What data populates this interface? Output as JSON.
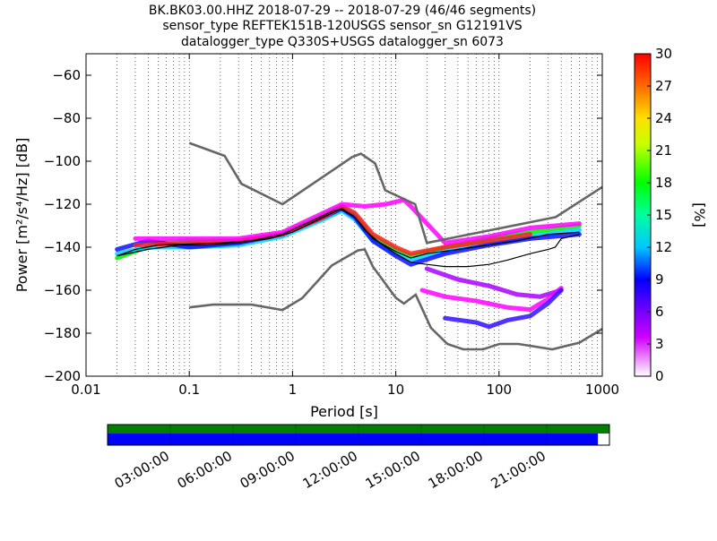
{
  "title_lines": [
    "BK.BK03.00.HHZ   2018-07-29 -- 2018-07-29  (46/46 segments)",
    "sensor_type REFTEK151B-120USGS sensor_sn G12191VS",
    "datalogger_type Q330S+USGS datalogger_sn 6073"
  ],
  "chart_data": {
    "type": "heatmap",
    "xlabel": "Period [s]",
    "ylabel": "Power [m²/s⁴/Hz] [dB]",
    "xscale": "log",
    "xlim": [
      0.01,
      1000
    ],
    "ylim": [
      -200,
      -50
    ],
    "x_ticks": [
      {
        "v": 0.01,
        "label": "0.01"
      },
      {
        "v": 0.1,
        "label": "0.1"
      },
      {
        "v": 1,
        "label": "1"
      },
      {
        "v": 10,
        "label": "10"
      },
      {
        "v": 100,
        "label": "100"
      },
      {
        "v": 1000,
        "label": "1000"
      }
    ],
    "y_ticks": [
      {
        "v": -60,
        "label": "−60"
      },
      {
        "v": -80,
        "label": "−80"
      },
      {
        "v": -100,
        "label": "−100"
      },
      {
        "v": -120,
        "label": "−120"
      },
      {
        "v": -140,
        "label": "−140"
      },
      {
        "v": -160,
        "label": "−160"
      },
      {
        "v": -180,
        "label": "−180"
      },
      {
        "v": -200,
        "label": "−200"
      }
    ],
    "grid": "dotted vertical lines at log-period steps",
    "colorbar": {
      "label": "[%]",
      "range": [
        0,
        30
      ],
      "ticks": [
        "0",
        "3",
        "6",
        "9",
        "12",
        "15",
        "18",
        "21",
        "24",
        "27",
        "30"
      ]
    },
    "noise_models": {
      "high": {
        "color": "#666666",
        "points": [
          [
            0.1,
            -91.5
          ],
          [
            0.22,
            -97.5
          ],
          [
            0.32,
            -110.5
          ],
          [
            0.8,
            -120
          ],
          [
            3.8,
            -98
          ],
          [
            4.6,
            -96.5
          ],
          [
            6.3,
            -101
          ],
          [
            7.9,
            -113.5
          ],
          [
            15.4,
            -120
          ],
          [
            20,
            -138
          ],
          [
            354,
            -126
          ],
          [
            1000,
            -112
          ]
        ]
      },
      "low": {
        "color": "#666666",
        "points": [
          [
            0.1,
            -168
          ],
          [
            0.17,
            -166.7
          ],
          [
            0.4,
            -166.7
          ],
          [
            0.8,
            -169.2
          ],
          [
            1.24,
            -163.7
          ],
          [
            2.4,
            -148.5
          ],
          [
            4.3,
            -141.5
          ],
          [
            5,
            -141
          ],
          [
            6,
            -149
          ],
          [
            10,
            -163.5
          ],
          [
            12,
            -166.2
          ],
          [
            15.6,
            -162.1
          ],
          [
            21.9,
            -177.5
          ],
          [
            31.6,
            -185
          ],
          [
            45,
            -187.5
          ],
          [
            70,
            -187.5
          ],
          [
            101,
            -185
          ],
          [
            154,
            -185
          ],
          [
            328,
            -187.5
          ],
          [
            600,
            -184.4
          ],
          [
            1000,
            -178
          ]
        ]
      }
    },
    "median": {
      "color": "#000000",
      "points": [
        [
          0.02,
          -144
        ],
        [
          0.03,
          -141
        ],
        [
          0.05,
          -139
        ],
        [
          0.1,
          -138.5
        ],
        [
          0.2,
          -138
        ],
        [
          0.4,
          -137
        ],
        [
          0.8,
          -134
        ],
        [
          1.5,
          -128
        ],
        [
          2.5,
          -123
        ],
        [
          3,
          -122.5
        ],
        [
          4,
          -126
        ],
        [
          5,
          -132
        ],
        [
          7,
          -138
        ],
        [
          10,
          -143
        ],
        [
          14,
          -147
        ],
        [
          20,
          -148
        ],
        [
          30,
          -149
        ],
        [
          50,
          -149
        ],
        [
          80,
          -148
        ],
        [
          120,
          -146
        ],
        [
          200,
          -143
        ],
        [
          300,
          -141
        ],
        [
          350,
          -140
        ],
        [
          400,
          -136
        ],
        [
          600,
          -134
        ]
      ]
    },
    "mode": {
      "color": "#000000",
      "points": [
        [
          0.02,
          -144
        ],
        [
          0.04,
          -141
        ],
        [
          0.08,
          -139
        ],
        [
          0.15,
          -139
        ],
        [
          0.3,
          -138
        ],
        [
          0.6,
          -136
        ],
        [
          1,
          -133
        ],
        [
          2,
          -126
        ],
        [
          3,
          -122
        ],
        [
          4,
          -126
        ],
        [
          6,
          -136
        ],
        [
          10,
          -142
        ],
        [
          14,
          -145
        ],
        [
          20,
          -143
        ],
        [
          40,
          -141
        ],
        [
          80,
          -139
        ],
        [
          150,
          -137
        ],
        [
          300,
          -134
        ],
        [
          600,
          -133
        ]
      ]
    },
    "density_bands": [
      {
        "color": "#00ee00",
        "points": [
          [
            0.02,
            -145
          ],
          [
            0.05,
            -138
          ],
          [
            0.1,
            -137
          ],
          [
            0.3,
            -137
          ],
          [
            0.8,
            -134
          ],
          [
            2,
            -125
          ],
          [
            3,
            -121
          ],
          [
            4,
            -125
          ],
          [
            6,
            -135
          ],
          [
            10,
            -141
          ],
          [
            14,
            -144
          ],
          [
            30,
            -140
          ],
          [
            80,
            -136
          ],
          [
            200,
            -133
          ],
          [
            600,
            -130
          ]
        ]
      },
      {
        "color": "#00d0ff",
        "points": [
          [
            0.02,
            -143
          ],
          [
            0.04,
            -140
          ],
          [
            0.1,
            -140
          ],
          [
            0.3,
            -139
          ],
          [
            0.8,
            -135
          ],
          [
            2,
            -127
          ],
          [
            3,
            -123
          ],
          [
            4,
            -127
          ],
          [
            6,
            -137
          ],
          [
            10,
            -143
          ],
          [
            14,
            -146
          ],
          [
            30,
            -142
          ],
          [
            80,
            -138
          ],
          [
            200,
            -135
          ],
          [
            600,
            -132
          ]
        ]
      },
      {
        "color": "#1010ff",
        "points": [
          [
            0.02,
            -141
          ],
          [
            0.04,
            -137
          ],
          [
            0.1,
            -140
          ],
          [
            0.3,
            -138
          ],
          [
            0.8,
            -134
          ],
          [
            2,
            -126
          ],
          [
            3,
            -122
          ],
          [
            4,
            -126
          ],
          [
            6,
            -137
          ],
          [
            10,
            -144
          ],
          [
            14,
            -148
          ],
          [
            30,
            -143
          ],
          [
            80,
            -139
          ],
          [
            200,
            -136
          ],
          [
            600,
            -134
          ]
        ]
      },
      {
        "color": "#ff2020",
        "points": [
          [
            0.03,
            -139
          ],
          [
            0.1,
            -138
          ],
          [
            0.3,
            -137
          ],
          [
            0.8,
            -134
          ],
          [
            2,
            -126
          ],
          [
            3,
            -121
          ],
          [
            4,
            -124
          ],
          [
            6,
            -134
          ],
          [
            10,
            -140
          ],
          [
            14,
            -143
          ],
          [
            30,
            -140
          ],
          [
            80,
            -137
          ],
          [
            200,
            -134
          ]
        ]
      },
      {
        "color": "#ff00ff",
        "points": [
          [
            0.03,
            -136
          ],
          [
            0.1,
            -136
          ],
          [
            0.3,
            -136
          ],
          [
            0.8,
            -133
          ],
          [
            2,
            -124
          ],
          [
            3,
            -120
          ],
          [
            5,
            -121
          ],
          [
            8,
            -120
          ],
          [
            12,
            -118
          ],
          [
            14,
            -121
          ],
          [
            30,
            -138
          ],
          [
            80,
            -135
          ],
          [
            200,
            -131
          ],
          [
            600,
            -129
          ]
        ]
      },
      {
        "color": "#aa00ff",
        "points": [
          [
            20,
            -150
          ],
          [
            40,
            -155
          ],
          [
            80,
            -158
          ],
          [
            150,
            -162
          ],
          [
            250,
            -163
          ],
          [
            400,
            -160
          ]
        ]
      },
      {
        "color": "#ff00ff",
        "points": [
          [
            18,
            -160
          ],
          [
            30,
            -163
          ],
          [
            60,
            -165
          ],
          [
            120,
            -168
          ],
          [
            200,
            -169
          ],
          [
            300,
            -164
          ],
          [
            400,
            -159
          ]
        ]
      },
      {
        "color": "#3010ff",
        "points": [
          [
            30,
            -173
          ],
          [
            60,
            -175
          ],
          [
            80,
            -177
          ],
          [
            120,
            -174
          ],
          [
            200,
            -172
          ],
          [
            300,
            -166
          ],
          [
            400,
            -160
          ]
        ]
      }
    ]
  },
  "availability": {
    "times": [
      "03:00:00",
      "06:00:00",
      "09:00:00",
      "12:00:00",
      "15:00:00",
      "18:00:00",
      "21:00:00"
    ],
    "data_fraction": 0.977,
    "colors": {
      "top": "#007f00",
      "bottom": "#0000ff"
    }
  }
}
